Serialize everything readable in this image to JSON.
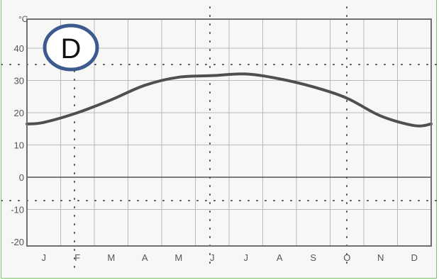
{
  "badge": {
    "label": "D",
    "ring_color": "#3d5a8f"
  },
  "chart_data": {
    "type": "line",
    "title": "",
    "xlabel": "",
    "ylabel": "°C",
    "unit_label": "°C",
    "grid": true,
    "ylim": [
      -20,
      45
    ],
    "yticks": [
      40,
      30,
      20,
      10,
      0,
      -10,
      -20
    ],
    "categories": [
      "J",
      "F",
      "M",
      "A",
      "M",
      "J",
      "J",
      "A",
      "S",
      "O",
      "N",
      "D"
    ],
    "series": [
      {
        "name": "",
        "values": [
          17,
          20,
          24,
          28.5,
          31,
          31.5,
          32,
          30.5,
          28,
          24.5,
          19,
          16
        ]
      }
    ],
    "colors": {
      "line": "#4f4f4f",
      "grid": "#b9b9b9",
      "frame": "#6f6f6f"
    }
  }
}
